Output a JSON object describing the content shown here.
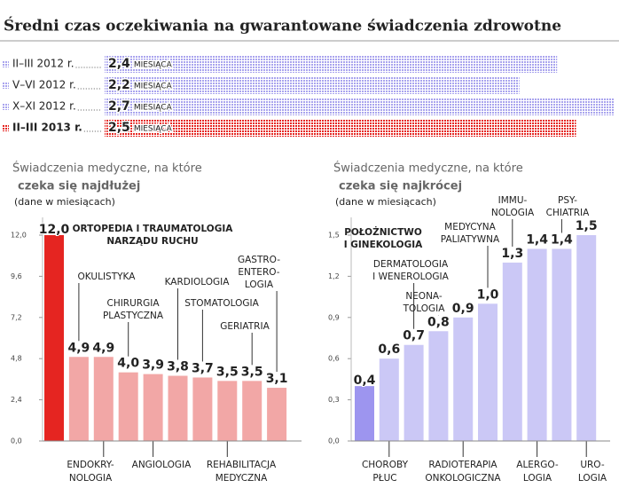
{
  "chart_data": [
    {
      "type": "hbar",
      "title": "Średni czas oczekiwania na gwarantowane świadczenia zdrowotne",
      "categories": [
        "II–III 2012 r.",
        "V–VI 2012 r.",
        "X–XI 2012 r.",
        "II–III 2013 r."
      ],
      "values": [
        2.4,
        2.2,
        2.7,
        2.5
      ],
      "value_labels": [
        "2,4",
        "2,2",
        "2,7",
        "2,5"
      ],
      "unit": "MIESIĄCA",
      "colors": [
        "#a9a4ee",
        "#a9a4ee",
        "#a9a4ee",
        "#e52521"
      ]
    },
    {
      "type": "bar",
      "title": "Świadczenia medyczne, na które",
      "title_emphasis": "czeka się najdłużej",
      "emphasis_color": "#e52521",
      "subtitle": "(dane w miesiącach)",
      "categories": [
        [
          "ORTOPEDIA I TRAUMATOLOGIA",
          "NARZĄDU RUCHU"
        ],
        [
          "OKULISTYKA"
        ],
        [
          "ENDOKRY-",
          "NOLOGIA"
        ],
        [
          "CHIRURGIA",
          "PLASTYCZNA"
        ],
        [
          "ANGIOLOGIA"
        ],
        [
          "KARDIOLOGIA"
        ],
        [
          "STOMATOLOGIA"
        ],
        [
          "REHABILITACJA",
          "MEDYCZNA"
        ],
        [
          "GERIATRIA"
        ],
        [
          "GASTRO-",
          "ENTERO-",
          "LOGIA"
        ]
      ],
      "values": [
        12.0,
        4.9,
        4.9,
        4.0,
        3.9,
        3.8,
        3.7,
        3.5,
        3.5,
        3.1
      ],
      "value_labels": [
        "12,0",
        "4,9",
        "4,9",
        "4,0",
        "3,9",
        "3,8",
        "3,7",
        "3,5",
        "3,5",
        "3,1"
      ],
      "colors": [
        "#e52521",
        "#f2a7a6",
        "#f2a7a6",
        "#f2a7a6",
        "#f2a7a6",
        "#f2a7a6",
        "#f2a7a6",
        "#f2a7a6",
        "#f2a7a6",
        "#f2a7a6"
      ],
      "ylim": [
        0,
        12
      ],
      "yticks": [
        {
          "value": 0,
          "label": "0,0"
        },
        {
          "value": 2.4,
          "label": "2,4"
        },
        {
          "value": 4.8,
          "label": "4,8"
        },
        {
          "value": 7.2,
          "label": "7,2"
        },
        {
          "value": 9.6,
          "label": "9,6"
        },
        {
          "value": 12,
          "label": "12,0"
        }
      ]
    },
    {
      "type": "bar",
      "title": "Świadczenia medyczne, na które",
      "title_emphasis": "czeka się najkrócej",
      "emphasis_color": "#9d95ef",
      "subtitle": "(dane w miesiącach)",
      "categories": [
        [
          "POŁOŻNICTWO",
          "I GINEKOLOGIA"
        ],
        [
          "CHOROBY",
          "PŁUC"
        ],
        [
          "DERMATOLOGIA",
          "I WENEROLOGIA"
        ],
        [
          "NEONA-",
          "TOLOGIA"
        ],
        [
          "RADIOTERAPIA",
          "ONKOLOGICZNA"
        ],
        [
          "MEDYCYNA",
          "PALIATYWNA"
        ],
        [
          "IMMU-",
          "NOLOGIA"
        ],
        [
          "ALERGO-",
          "LOGIA"
        ],
        [
          "PSY-",
          "CHIATRIA"
        ],
        [
          "URO-",
          "LOGIA"
        ]
      ],
      "values": [
        0.4,
        0.6,
        0.7,
        0.8,
        0.9,
        1.0,
        1.3,
        1.4,
        1.4,
        1.5
      ],
      "value_labels": [
        "0,4",
        "0,6",
        "0,7",
        "0,8",
        "0,9",
        "1,0",
        "1,3",
        "1,4",
        "1,4",
        "1,5"
      ],
      "colors": [
        "#9d95ef",
        "#cbc8f6",
        "#cbc8f6",
        "#cbc8f6",
        "#cbc8f6",
        "#cbc8f6",
        "#cbc8f6",
        "#cbc8f6",
        "#cbc8f6",
        "#cbc8f6"
      ],
      "ylim": [
        0,
        1.5
      ],
      "yticks": [
        {
          "value": 0,
          "label": "0,0"
        },
        {
          "value": 0.3,
          "label": "0,3"
        },
        {
          "value": 0.6,
          "label": "0,6"
        },
        {
          "value": 0.9,
          "label": "0,9"
        },
        {
          "value": 1.2,
          "label": "1,2"
        },
        {
          "value": 1.5,
          "label": "1,5"
        }
      ]
    }
  ]
}
